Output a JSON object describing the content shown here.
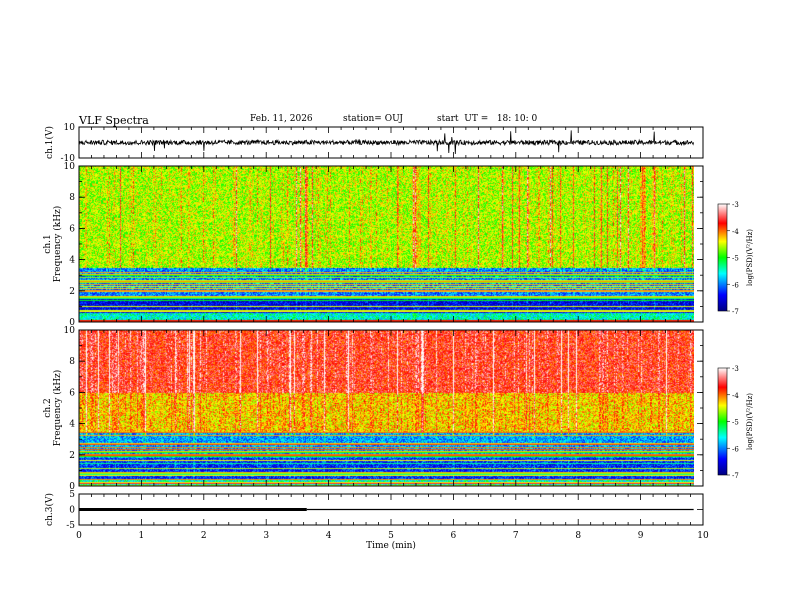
{
  "header": {
    "title": "VLF Spectra",
    "date": "Feb. 11, 2026",
    "station": "station= OUJ",
    "start": "start  UT =   18: 10: 0"
  },
  "chart_data": [
    {
      "type": "line",
      "ylabel": "ch.1(V)",
      "ylim": [
        -10,
        10
      ],
      "yticks": [
        "10",
        "-10"
      ],
      "series": [
        {
          "mean": 0,
          "noise_amplitude": 1.5
        }
      ]
    },
    {
      "type": "heatmap",
      "ylabel": "Frequency (kHz)",
      "channel_label": "ch.1",
      "ylim": [
        0,
        10
      ],
      "yticks": [
        "0",
        "2",
        "4",
        "6",
        "8",
        "10"
      ],
      "xlim": [
        0,
        10
      ],
      "x_data_end": 9.85,
      "colorbar": {
        "label": "log(PSD)(V²/Hz)",
        "range": [
          -7,
          -3
        ],
        "ticks": [
          "-3",
          "-4",
          "-5",
          "-6",
          "-7"
        ]
      },
      "bands": [
        {
          "from": 0,
          "to": 0.6,
          "level": -5.5
        },
        {
          "from": 0.6,
          "to": 1.6,
          "level": -6.5
        },
        {
          "from": 1.6,
          "to": 3.5,
          "level": -6.0
        },
        {
          "from": 3.5,
          "to": 10,
          "level": -4.6
        }
      ]
    },
    {
      "type": "heatmap",
      "ylabel": "Frequency (kHz)",
      "channel_label": "ch.2",
      "ylim": [
        0,
        10
      ],
      "yticks": [
        "0",
        "2",
        "4",
        "6",
        "8",
        "10"
      ],
      "xlim": [
        0,
        10
      ],
      "x_data_end": 9.85,
      "colorbar": {
        "label": "log(PSD)(V²/Hz)",
        "range": [
          -7,
          -3
        ],
        "ticks": [
          "-3",
          "-4",
          "-5",
          "-6",
          "-7"
        ]
      },
      "bands": [
        {
          "from": 0,
          "to": 0.5,
          "level": -5.5
        },
        {
          "from": 0.5,
          "to": 1.8,
          "level": -6.3
        },
        {
          "from": 1.8,
          "to": 3.5,
          "level": -5.9
        },
        {
          "from": 3.5,
          "to": 6,
          "level": -4.3
        },
        {
          "from": 6,
          "to": 10,
          "level": -3.7
        }
      ]
    },
    {
      "type": "line",
      "ylabel": "ch.3(V)",
      "ylim": [
        -5,
        5
      ],
      "yticks": [
        "5",
        "0",
        "-5"
      ],
      "xlabel": "Time (min)",
      "xticks": [
        "0",
        "1",
        "2",
        "3",
        "4",
        "5",
        "6",
        "7",
        "8",
        "9",
        "10"
      ],
      "series": [
        {
          "x": [
            0,
            3.65
          ],
          "y": [
            0,
            0
          ],
          "weight": "thick"
        },
        {
          "x": [
            3.65,
            9.85
          ],
          "y": [
            0,
            0
          ],
          "weight": "thin"
        }
      ]
    }
  ]
}
